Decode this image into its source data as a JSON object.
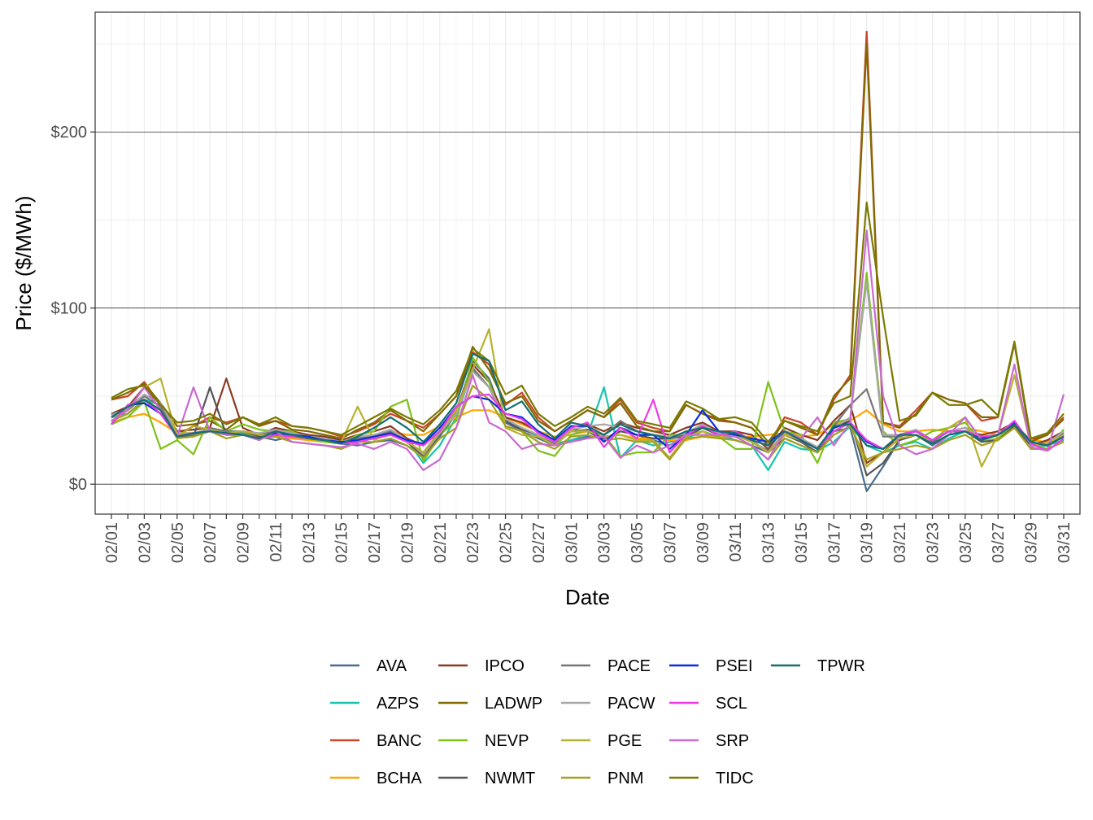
{
  "chart_data": {
    "type": "line",
    "xlabel": "Date",
    "ylabel": "Price ($/MWh)",
    "ylim": [
      -17,
      268
    ],
    "y_ticks": [
      0,
      100,
      200
    ],
    "y_tick_labels": [
      "$0",
      "$100",
      "$200"
    ],
    "grid": true,
    "legend_position": "bottom",
    "x": [
      "02/01",
      "02/02",
      "02/03",
      "02/04",
      "02/05",
      "02/06",
      "02/07",
      "02/08",
      "02/09",
      "02/10",
      "02/11",
      "02/12",
      "02/13",
      "02/14",
      "02/15",
      "02/16",
      "02/17",
      "02/18",
      "02/19",
      "02/20",
      "02/21",
      "02/22",
      "02/23",
      "02/24",
      "02/25",
      "02/26",
      "02/27",
      "02/28",
      "03/01",
      "03/02",
      "03/03",
      "03/04",
      "03/05",
      "03/06",
      "03/07",
      "03/08",
      "03/09",
      "03/10",
      "03/11",
      "03/12",
      "03/13",
      "03/14",
      "03/15",
      "03/16",
      "03/17",
      "03/18",
      "03/19",
      "03/20",
      "03/21",
      "03/22",
      "03/23",
      "03/24",
      "03/25",
      "03/26",
      "03/27",
      "03/28",
      "03/29",
      "03/30",
      "03/31"
    ],
    "x_tick_labels": [
      "02/01",
      "02/03",
      "02/05",
      "02/07",
      "02/09",
      "02/11",
      "02/13",
      "02/15",
      "02/17",
      "02/19",
      "02/21",
      "02/23",
      "02/25",
      "02/27",
      "03/01",
      "03/03",
      "03/05",
      "03/07",
      "03/09",
      "03/11",
      "03/13",
      "03/15",
      "03/17",
      "03/19",
      "03/21",
      "03/23",
      "03/25",
      "03/27",
      "03/29",
      "03/31"
    ],
    "series": [
      {
        "name": "AVA",
        "color": "#4b6e8e",
        "values": [
          36,
          40,
          48,
          42,
          27,
          28,
          30,
          29,
          28,
          27,
          25,
          27,
          25,
          24,
          23,
          22,
          24,
          25,
          22,
          15,
          27,
          40,
          70,
          60,
          35,
          30,
          26,
          22,
          25,
          27,
          26,
          30,
          28,
          25,
          22,
          27,
          32,
          28,
          25,
          22,
          18,
          26,
          22,
          18,
          30,
          32,
          -4,
          10,
          25,
          28,
          22,
          28,
          30,
          25,
          28,
          33,
          22,
          22,
          27
        ]
      },
      {
        "name": "AZPS",
        "color": "#18c4b0",
        "values": [
          38,
          40,
          48,
          45,
          28,
          29,
          31,
          30,
          29,
          28,
          30,
          29,
          27,
          26,
          24,
          24,
          26,
          28,
          25,
          12,
          22,
          38,
          65,
          55,
          36,
          32,
          27,
          23,
          25,
          28,
          55,
          15,
          25,
          22,
          24,
          26,
          30,
          27,
          25,
          22,
          8,
          24,
          20,
          19,
          24,
          33,
          22,
          18,
          22,
          24,
          20,
          26,
          30,
          24,
          26,
          33,
          22,
          22,
          25
        ]
      },
      {
        "name": "BANC",
        "color": "#c8462a",
        "values": [
          48,
          50,
          58,
          45,
          28,
          33,
          38,
          35,
          38,
          34,
          36,
          33,
          32,
          30,
          27,
          30,
          34,
          40,
          36,
          32,
          40,
          50,
          75,
          68,
          45,
          52,
          38,
          30,
          36,
          42,
          38,
          48,
          35,
          32,
          30,
          45,
          40,
          37,
          35,
          32,
          22,
          38,
          35,
          28,
          48,
          62,
          257,
          35,
          33,
          42,
          52,
          48,
          46,
          36,
          38,
          80,
          25,
          28,
          38
        ]
      },
      {
        "name": "BCHA",
        "color": "#ffa500",
        "values": [
          35,
          38,
          40,
          35,
          29,
          29,
          30,
          28,
          28,
          27,
          27,
          26,
          25,
          24,
          23,
          27,
          28,
          30,
          28,
          28,
          33,
          38,
          42,
          42,
          38,
          34,
          30,
          27,
          28,
          30,
          27,
          28,
          26,
          26,
          25,
          25,
          27,
          27,
          27,
          27,
          28,
          29,
          27,
          28,
          34,
          36,
          42,
          34,
          30,
          30,
          31,
          30,
          32,
          30,
          28,
          34,
          25,
          24,
          27
        ]
      },
      {
        "name": "IPCO",
        "color": "#8b3a1f",
        "values": [
          40,
          44,
          55,
          45,
          30,
          31,
          32,
          60,
          32,
          28,
          32,
          30,
          28,
          27,
          25,
          28,
          30,
          33,
          26,
          22,
          30,
          42,
          68,
          58,
          38,
          35,
          30,
          25,
          30,
          34,
          30,
          35,
          32,
          30,
          28,
          32,
          35,
          30,
          30,
          28,
          20,
          32,
          28,
          25,
          36,
          45,
          12,
          18,
          28,
          30,
          25,
          30,
          30,
          28,
          30,
          35,
          22,
          25,
          30
        ]
      },
      {
        "name": "LADWP",
        "color": "#806a00",
        "values": [
          48,
          52,
          57,
          46,
          33,
          34,
          36,
          31,
          38,
          33,
          36,
          31,
          30,
          28,
          26,
          31,
          35,
          42,
          36,
          30,
          40,
          50,
          78,
          65,
          46,
          50,
          36,
          30,
          36,
          42,
          38,
          46,
          33,
          30,
          30,
          45,
          40,
          36,
          35,
          32,
          22,
          36,
          32,
          28,
          50,
          60,
          250,
          35,
          32,
          40,
          52,
          48,
          46,
          38,
          38,
          80,
          24,
          28,
          37
        ]
      },
      {
        "name": "NEVP",
        "color": "#7ec21a",
        "values": [
          34,
          38,
          47,
          20,
          25,
          17,
          38,
          30,
          34,
          31,
          30,
          30,
          26,
          24,
          23,
          28,
          30,
          44,
          48,
          13,
          28,
          36,
          72,
          58,
          33,
          30,
          19,
          16,
          28,
          31,
          28,
          16,
          18,
          18,
          28,
          28,
          30,
          27,
          20,
          20,
          58,
          30,
          28,
          12,
          35,
          37,
          120,
          30,
          22,
          25,
          30,
          32,
          35,
          24,
          26,
          34,
          23,
          20,
          31
        ]
      },
      {
        "name": "NWMT",
        "color": "#55555a",
        "values": [
          38,
          42,
          50,
          44,
          27,
          27,
          55,
          28,
          30,
          27,
          30,
          28,
          26,
          25,
          23,
          26,
          27,
          30,
          24,
          16,
          28,
          42,
          66,
          55,
          36,
          31,
          28,
          23,
          30,
          30,
          25,
          30,
          28,
          26,
          26,
          27,
          32,
          28,
          28,
          24,
          18,
          28,
          24,
          18,
          32,
          36,
          5,
          12,
          25,
          28,
          23,
          28,
          30,
          24,
          25,
          33,
          22,
          23,
          28
        ]
      },
      {
        "name": "PACE",
        "color": "#767676",
        "values": [
          40,
          42,
          50,
          44,
          28,
          28,
          32,
          30,
          30,
          28,
          30,
          28,
          27,
          25,
          24,
          26,
          28,
          30,
          24,
          18,
          30,
          42,
          66,
          55,
          37,
          32,
          28,
          23,
          30,
          31,
          28,
          36,
          30,
          28,
          26,
          28,
          33,
          28,
          28,
          24,
          19,
          28,
          25,
          20,
          33,
          45,
          54,
          27,
          27,
          30,
          24,
          30,
          32,
          25,
          28,
          34,
          23,
          23,
          29
        ]
      },
      {
        "name": "PACW",
        "color": "#a8a8a8",
        "values": [
          39,
          43,
          51,
          46,
          29,
          29,
          31,
          29,
          30,
          29,
          31,
          29,
          27,
          26,
          24,
          27,
          28,
          31,
          25,
          17,
          29,
          40,
          64,
          55,
          37,
          32,
          28,
          24,
          31,
          33,
          34,
          32,
          30,
          28,
          27,
          29,
          34,
          29,
          29,
          25,
          18,
          30,
          26,
          21,
          32,
          38,
          115,
          28,
          28,
          31,
          25,
          30,
          32,
          26,
          28,
          36,
          23,
          23,
          30
        ]
      },
      {
        "name": "PGE",
        "color": "#b8b030",
        "values": [
          38,
          42,
          55,
          60,
          27,
          33,
          31,
          29,
          30,
          28,
          28,
          27,
          26,
          25,
          24,
          44,
          25,
          29,
          24,
          18,
          30,
          42,
          65,
          88,
          32,
          28,
          27,
          22,
          30,
          30,
          27,
          28,
          25,
          25,
          15,
          27,
          30,
          26,
          28,
          24,
          18,
          28,
          25,
          20,
          30,
          35,
          10,
          18,
          26,
          28,
          25,
          32,
          38,
          10,
          28,
          62,
          22,
          23,
          28
        ]
      },
      {
        "name": "PNM",
        "color": "#a6a020",
        "values": [
          36,
          40,
          48,
          42,
          26,
          27,
          30,
          26,
          28,
          26,
          27,
          24,
          23,
          22,
          20,
          24,
          24,
          26,
          22,
          15,
          26,
          32,
          56,
          48,
          33,
          30,
          24,
          20,
          27,
          28,
          25,
          26,
          24,
          24,
          14,
          26,
          27,
          26,
          25,
          22,
          14,
          26,
          22,
          18,
          28,
          33,
          14,
          18,
          20,
          22,
          20,
          25,
          28,
          22,
          25,
          32,
          20,
          20,
          24
        ]
      },
      {
        "name": "PSEI",
        "color": "#0a2ee0",
        "values": [
          34,
          45,
          46,
          40,
          27,
          29,
          30,
          29,
          28,
          26,
          29,
          28,
          27,
          25,
          24,
          25,
          27,
          29,
          25,
          23,
          32,
          44,
          50,
          48,
          40,
          38,
          30,
          25,
          33,
          33,
          24,
          32,
          28,
          28,
          20,
          28,
          42,
          30,
          28,
          26,
          24,
          30,
          25,
          20,
          32,
          35,
          24,
          20,
          28,
          30,
          25,
          30,
          30,
          26,
          28,
          35,
          24,
          22,
          27
        ]
      },
      {
        "name": "SCL",
        "color": "#ee3be8",
        "values": [
          34,
          45,
          48,
          40,
          27,
          29,
          30,
          29,
          28,
          26,
          28,
          27,
          26,
          25,
          23,
          24,
          26,
          28,
          24,
          22,
          30,
          44,
          50,
          51,
          40,
          37,
          29,
          24,
          32,
          35,
          21,
          32,
          26,
          48,
          18,
          28,
          33,
          28,
          30,
          25,
          22,
          30,
          25,
          20,
          30,
          35,
          25,
          20,
          28,
          30,
          25,
          30,
          30,
          27,
          28,
          36,
          23,
          19,
          26
        ]
      },
      {
        "name": "SRP",
        "color": "#c86bd0",
        "values": [
          36,
          42,
          55,
          42,
          27,
          55,
          30,
          28,
          28,
          25,
          30,
          24,
          23,
          22,
          21,
          23,
          20,
          24,
          20,
          8,
          14,
          32,
          62,
          35,
          30,
          20,
          23,
          22,
          24,
          26,
          27,
          15,
          22,
          18,
          22,
          28,
          28,
          28,
          27,
          22,
          14,
          30,
          26,
          38,
          22,
          35,
          144,
          50,
          22,
          17,
          20,
          28,
          38,
          25,
          28,
          68,
          21,
          19,
          51
        ]
      },
      {
        "name": "TIDC",
        "color": "#7a7a00",
        "values": [
          49,
          54,
          56,
          45,
          35,
          36,
          40,
          34,
          38,
          34,
          38,
          33,
          32,
          30,
          28,
          33,
          38,
          43,
          38,
          34,
          42,
          53,
          77,
          70,
          51,
          56,
          40,
          33,
          38,
          44,
          40,
          49,
          36,
          34,
          32,
          47,
          43,
          37,
          38,
          35,
          24,
          36,
          33,
          30,
          46,
          50,
          160,
          95,
          36,
          39,
          52,
          45,
          45,
          48,
          39,
          81,
          26,
          29,
          40
        ]
      },
      {
        "name": "TPWR",
        "color": "#127070",
        "values": [
          38,
          44,
          48,
          42,
          27,
          29,
          30,
          29,
          28,
          26,
          30,
          28,
          26,
          25,
          23,
          27,
          32,
          38,
          32,
          24,
          34,
          46,
          74,
          70,
          42,
          47,
          34,
          26,
          35,
          33,
          28,
          34,
          30,
          28,
          26,
          30,
          32,
          30,
          29,
          25,
          22,
          30,
          25,
          20,
          33,
          34,
          22,
          20,
          28,
          28,
          23,
          28,
          30,
          25,
          28,
          34,
          24,
          22,
          27
        ]
      }
    ]
  }
}
